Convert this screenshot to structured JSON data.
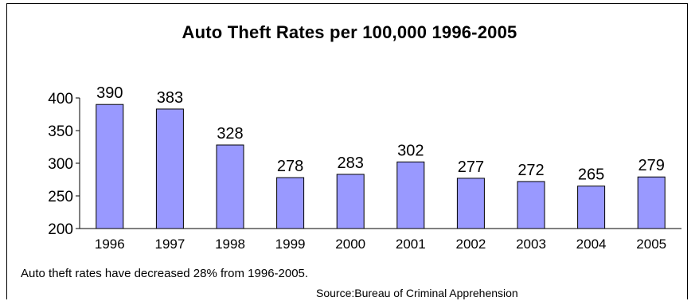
{
  "chart_data": {
    "type": "bar",
    "title": "Auto Theft Rates per 100,000 1996-2005",
    "xlabel": "",
    "ylabel": "",
    "categories": [
      "1996",
      "1997",
      "1998",
      "1999",
      "2000",
      "2001",
      "2002",
      "2003",
      "2004",
      "2005"
    ],
    "values": [
      390,
      383,
      328,
      278,
      283,
      302,
      277,
      272,
      265,
      279
    ],
    "data_labels": [
      "390",
      "383",
      "328",
      "278",
      "283",
      "302",
      "277",
      "272",
      "265",
      "279"
    ],
    "ylim": [
      200,
      400
    ],
    "yticks": [
      "200",
      "250",
      "300",
      "350",
      "400"
    ],
    "grid": false,
    "bar_color": "#9999ff"
  },
  "footer": {
    "note": "Auto theft rates have decreased 28% from 1996-2005.",
    "source": "Source:Bureau of Criminal Apprehension"
  }
}
